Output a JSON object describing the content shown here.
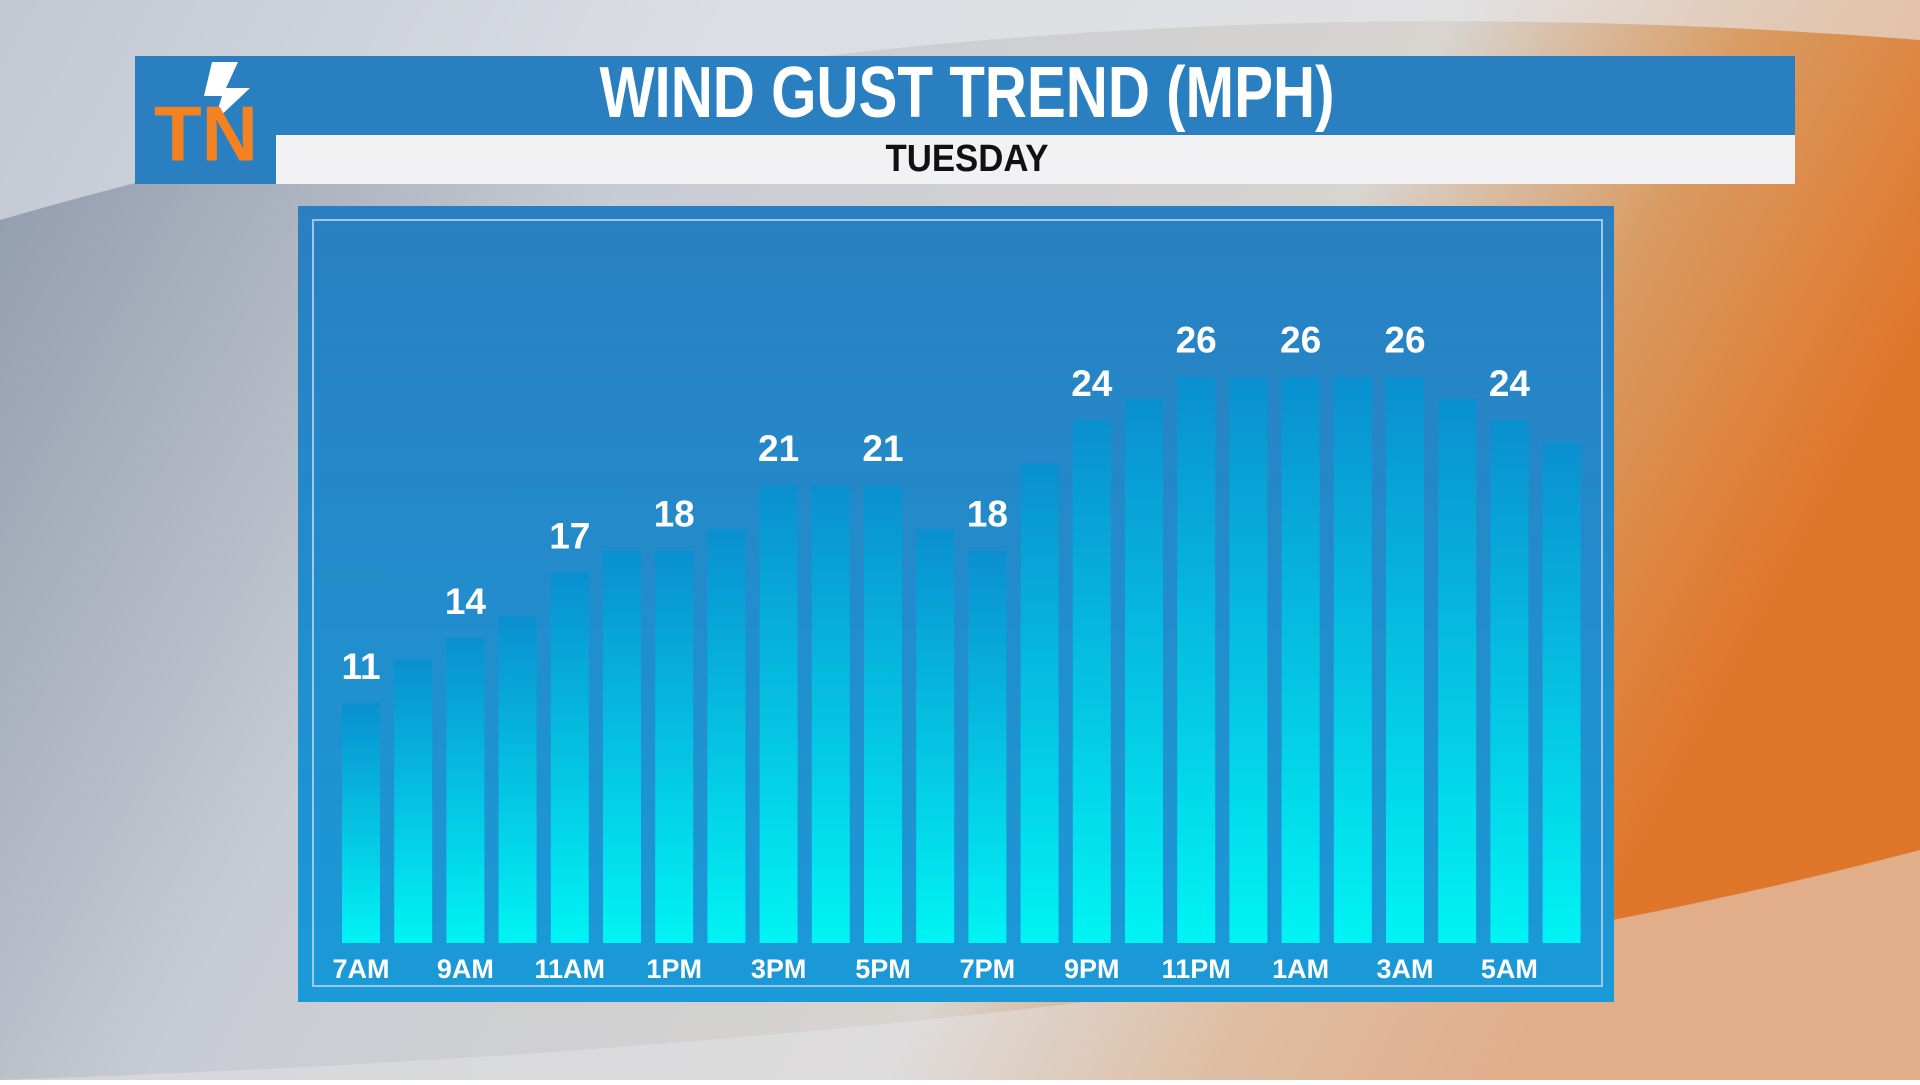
{
  "logo": "TN",
  "chart_data": {
    "type": "bar",
    "title": "WIND GUST TREND (MPH)",
    "subtitle": "TUESDAY",
    "categories": [
      "7AM",
      null,
      "9AM",
      null,
      "11AM",
      null,
      "1PM",
      null,
      "3PM",
      null,
      "5PM",
      null,
      "7PM",
      null,
      "9PM",
      null,
      "11PM",
      null,
      "1AM",
      null,
      "3AM",
      null,
      "5AM",
      null
    ],
    "values": [
      11,
      13,
      14,
      15,
      17,
      18,
      18,
      19,
      21,
      21,
      21,
      19,
      18,
      22,
      24,
      25,
      26,
      26,
      26,
      26,
      26,
      25,
      24,
      23
    ],
    "value_labels": [
      "11",
      null,
      "14",
      null,
      "17",
      null,
      "18",
      null,
      "21",
      null,
      "21",
      null,
      "18",
      null,
      "24",
      null,
      "26",
      null,
      "26",
      null,
      "26",
      null,
      "24",
      null
    ],
    "color": "#00e8f0",
    "ylim": [
      0,
      33
    ]
  }
}
